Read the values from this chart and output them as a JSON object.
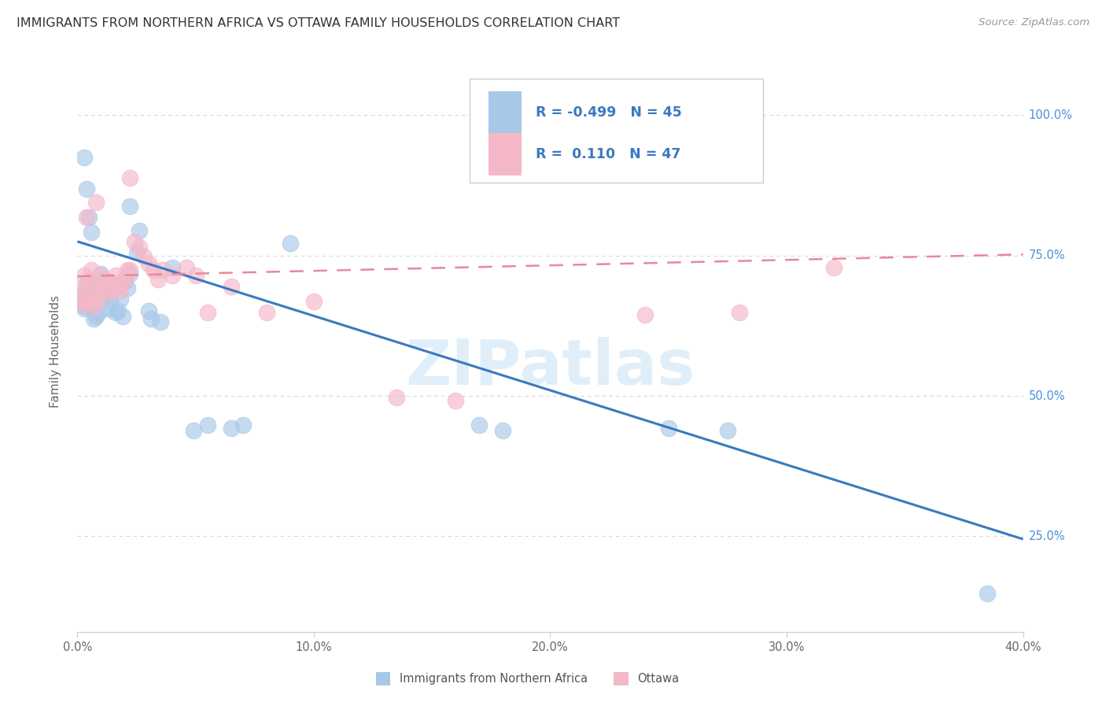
{
  "title": "IMMIGRANTS FROM NORTHERN AFRICA VS OTTAWA FAMILY HOUSEHOLDS CORRELATION CHART",
  "source": "Source: ZipAtlas.com",
  "xlabel_blue": "Immigrants from Northern Africa",
  "xlabel_pink": "Ottawa",
  "ylabel": "Family Households",
  "xlim": [
    0.0,
    0.4
  ],
  "ylim": [
    0.08,
    1.08
  ],
  "xtick_labels": [
    "0.0%",
    "",
    "10.0%",
    "",
    "20.0%",
    "",
    "30.0%",
    "",
    "40.0%"
  ],
  "xtick_vals": [
    0.0,
    0.05,
    0.1,
    0.15,
    0.2,
    0.25,
    0.3,
    0.35,
    0.4
  ],
  "ytick_labels_right": [
    "100.0%",
    "75.0%",
    "50.0%",
    "25.0%"
  ],
  "ytick_vals": [
    1.0,
    0.75,
    0.5,
    0.25
  ],
  "legend_R_blue": "-0.499",
  "legend_N_blue": "45",
  "legend_R_pink": "0.110",
  "legend_N_pink": "47",
  "blue_line_x": [
    0.0,
    0.4
  ],
  "blue_line_y": [
    0.775,
    0.245
  ],
  "pink_line_x": [
    0.0,
    0.4
  ],
  "pink_line_y": [
    0.713,
    0.752
  ],
  "blue_color": "#a8c8e8",
  "blue_line_color": "#3a7abf",
  "pink_color": "#f4b8c8",
  "pink_line_color": "#e8889a",
  "blue_scatter": [
    [
      0.001,
      0.68
    ],
    [
      0.002,
      0.665
    ],
    [
      0.003,
      0.655
    ],
    [
      0.003,
      0.66
    ],
    [
      0.004,
      0.7
    ],
    [
      0.005,
      0.695
    ],
    [
      0.005,
      0.688
    ],
    [
      0.006,
      0.66
    ],
    [
      0.007,
      0.638
    ],
    [
      0.008,
      0.642
    ],
    [
      0.009,
      0.648
    ],
    [
      0.01,
      0.718
    ],
    [
      0.011,
      0.708
    ],
    [
      0.012,
      0.678
    ],
    [
      0.013,
      0.655
    ],
    [
      0.014,
      0.67
    ],
    [
      0.015,
      0.695
    ],
    [
      0.016,
      0.648
    ],
    [
      0.017,
      0.652
    ],
    [
      0.018,
      0.672
    ],
    [
      0.019,
      0.642
    ],
    [
      0.02,
      0.705
    ],
    [
      0.021,
      0.692
    ],
    [
      0.022,
      0.718
    ],
    [
      0.025,
      0.755
    ],
    [
      0.026,
      0.795
    ],
    [
      0.03,
      0.652
    ],
    [
      0.031,
      0.638
    ],
    [
      0.035,
      0.632
    ],
    [
      0.04,
      0.728
    ],
    [
      0.049,
      0.438
    ],
    [
      0.055,
      0.448
    ],
    [
      0.065,
      0.442
    ],
    [
      0.07,
      0.448
    ],
    [
      0.003,
      0.925
    ],
    [
      0.004,
      0.868
    ],
    [
      0.005,
      0.818
    ],
    [
      0.006,
      0.792
    ],
    [
      0.022,
      0.838
    ],
    [
      0.09,
      0.772
    ],
    [
      0.17,
      0.448
    ],
    [
      0.18,
      0.438
    ],
    [
      0.25,
      0.442
    ],
    [
      0.275,
      0.438
    ],
    [
      0.385,
      0.148
    ]
  ],
  "pink_scatter": [
    [
      0.001,
      0.69
    ],
    [
      0.002,
      0.672
    ],
    [
      0.003,
      0.662
    ],
    [
      0.003,
      0.715
    ],
    [
      0.004,
      0.668
    ],
    [
      0.004,
      0.818
    ],
    [
      0.005,
      0.705
    ],
    [
      0.005,
      0.692
    ],
    [
      0.006,
      0.672
    ],
    [
      0.006,
      0.725
    ],
    [
      0.007,
      0.658
    ],
    [
      0.008,
      0.685
    ],
    [
      0.008,
      0.845
    ],
    [
      0.009,
      0.672
    ],
    [
      0.01,
      0.715
    ],
    [
      0.011,
      0.698
    ],
    [
      0.012,
      0.688
    ],
    [
      0.013,
      0.705
    ],
    [
      0.014,
      0.685
    ],
    [
      0.015,
      0.698
    ],
    [
      0.016,
      0.715
    ],
    [
      0.017,
      0.695
    ],
    [
      0.018,
      0.688
    ],
    [
      0.019,
      0.705
    ],
    [
      0.02,
      0.708
    ],
    [
      0.021,
      0.725
    ],
    [
      0.022,
      0.725
    ],
    [
      0.022,
      0.888
    ],
    [
      0.024,
      0.775
    ],
    [
      0.026,
      0.765
    ],
    [
      0.028,
      0.748
    ],
    [
      0.03,
      0.735
    ],
    [
      0.032,
      0.725
    ],
    [
      0.034,
      0.708
    ],
    [
      0.036,
      0.725
    ],
    [
      0.04,
      0.715
    ],
    [
      0.046,
      0.728
    ],
    [
      0.05,
      0.715
    ],
    [
      0.055,
      0.648
    ],
    [
      0.065,
      0.695
    ],
    [
      0.08,
      0.648
    ],
    [
      0.1,
      0.668
    ],
    [
      0.135,
      0.498
    ],
    [
      0.16,
      0.492
    ],
    [
      0.24,
      0.645
    ],
    [
      0.28,
      0.648
    ],
    [
      0.32,
      0.728
    ]
  ],
  "watermark": "ZIPatlas",
  "background_color": "#ffffff",
  "grid_color": "#d8d8d8"
}
